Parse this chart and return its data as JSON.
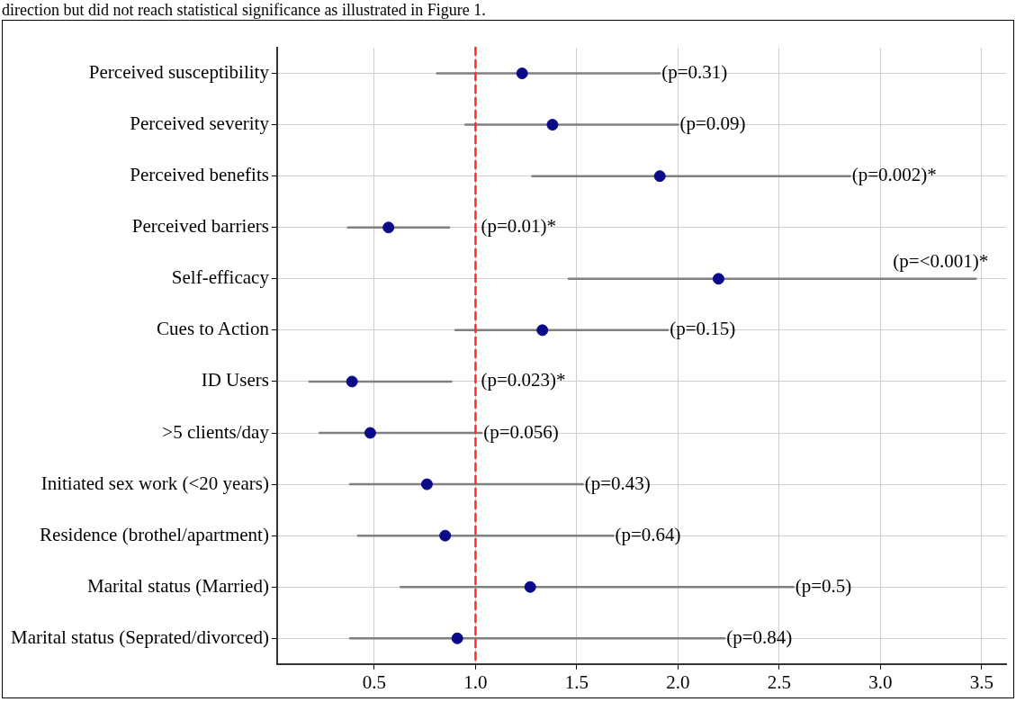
{
  "chart_data": {
    "type": "scatter",
    "orientation": "horizontal",
    "categories": [
      "Perceived susceptibility",
      "Perceived severity",
      "Perceived benefits",
      "Perceived barriers",
      "Self-efficacy",
      "Cues to Action",
      "ID Users",
      ">5 clients/day",
      "Initiated sex work (<20 years)",
      "Residence (brothel/apartment)",
      "Marital status (Married)",
      "Marital status (Seprated/divorced)"
    ],
    "series": [
      {
        "color": "#0b0b8a",
        "values": [
          1.23,
          1.38,
          1.91,
          0.57,
          2.2,
          1.33,
          0.39,
          0.48,
          0.76,
          0.85,
          1.27,
          0.91
        ],
        "errors": [
          [
            0.81,
            1.91
          ],
          [
            0.95,
            2.0
          ],
          [
            1.28,
            2.85
          ],
          [
            0.37,
            0.87
          ],
          [
            1.46,
            3.47
          ],
          [
            0.9,
            1.95
          ],
          [
            0.18,
            0.88
          ],
          [
            0.23,
            1.03
          ],
          [
            0.38,
            1.53
          ],
          [
            0.42,
            1.68
          ],
          [
            0.63,
            2.57
          ],
          [
            0.38,
            2.23
          ]
        ]
      }
    ],
    "xlim": [
      0.02,
      3.62
    ],
    "xticks": [
      {
        "value": 0.5,
        "label": "0.5"
      },
      {
        "value": 1,
        "label": "1.0"
      },
      {
        "value": 1.5,
        "label": "1.5"
      },
      {
        "value": 2,
        "label": "2.0"
      },
      {
        "value": 2.5,
        "label": "2.5"
      },
      {
        "value": 3,
        "label": "3.0"
      },
      {
        "value": 3.5,
        "label": "3.5"
      }
    ],
    "ref_lines": [
      {
        "axis": "x",
        "value": 1,
        "color": "#ff2a2a",
        "line_style": "dashed"
      }
    ],
    "grid": true,
    "marker": "circle",
    "legend": false,
    "annotations": [
      "direction but did not reach statistical significance as illustrated in Figure 1.",
      {
        "text": "(p=0.31)",
        "x": 1.91,
        "y": "Perceived susceptibility"
      },
      {
        "text": "(p=0.09)",
        "x": 2.0,
        "y": "Perceived severity"
      },
      {
        "text": "(p=0.002)*",
        "x": 2.85,
        "y": "Perceived benefits"
      },
      {
        "text": "(p=0.01)*",
        "x": 0.87,
        "y": "Perceived barriers"
      },
      {
        "text": "(p=<0.001)*",
        "x": 3.47,
        "y": "Self-efficacy"
      },
      {
        "text": "(p=0.15)",
        "x": 1.95,
        "y": "Cues to Action"
      },
      {
        "text": "(p=0.023)*",
        "x": 0.88,
        "y": "ID Users"
      },
      {
        "text": "(p=0.056)",
        "x": 1.03,
        "y": ">5 clients/day"
      },
      {
        "text": "(p=0.43)",
        "x": 1.53,
        "y": "Initiated sex work (<20 years)"
      },
      {
        "text": "(p=0.64)",
        "x": 1.68,
        "y": "Residence (brothel/apartment)"
      },
      {
        "text": "(p=0.5)",
        "x": 2.57,
        "y": "Marital status (Married)"
      },
      {
        "text": "(p=0.84)",
        "x": 2.23,
        "y": "Marital status (Seprated/divorced)"
      }
    ]
  }
}
